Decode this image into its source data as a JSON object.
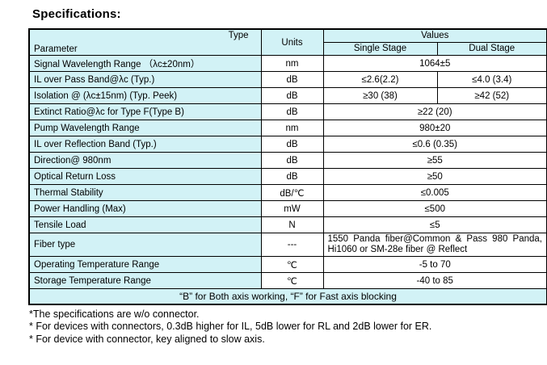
{
  "page": {
    "title": "Specifications:",
    "accent_color": "#d2f2f6",
    "border_color": "#000000"
  },
  "table": {
    "header": {
      "type_label": "Type",
      "param_label": "Parameter",
      "units_label": "Units",
      "values_label": "Values",
      "single_label": "Single Stage",
      "dual_label": "Dual Stage"
    },
    "rows": [
      {
        "param": "Signal Wavelength Range （λc±20nm）",
        "units": "nm",
        "values": [
          "1064±5"
        ]
      },
      {
        "param": "IL over Pass Band@λc (Typ.)",
        "units": "dB",
        "values": [
          "≤2.6(2.2)",
          "≤4.0 (3.4)"
        ]
      },
      {
        "param": "Isolation @ (λc±15nm) (Typ. Peek)",
        "units": "dB",
        "values": [
          "≥30 (38)",
          "≥42 (52)"
        ]
      },
      {
        "param": "Extinct Ratio@λc for Type F(Type B)",
        "units": "dB",
        "values": [
          "≥22 (20)"
        ]
      },
      {
        "param": "Pump Wavelength Range",
        "units": "nm",
        "values": [
          "980±20"
        ]
      },
      {
        "param": "IL over Reflection Band (Typ.)",
        "units": "dB",
        "values": [
          "≤0.6 (0.35)"
        ]
      },
      {
        "param": "Direction@ 980nm",
        "units": "dB",
        "values": [
          "≥55"
        ]
      },
      {
        "param": "Optical Return Loss",
        "units": "dB",
        "values": [
          "≥50"
        ]
      },
      {
        "param": "Thermal Stability",
        "units": "dB/℃",
        "values": [
          "≤0.005"
        ]
      },
      {
        "param": "Power Handling (Max)",
        "units": "mW",
        "values": [
          "≤500"
        ]
      },
      {
        "param": "Tensile Load",
        "units": "N",
        "values": [
          "≤5"
        ]
      },
      {
        "param": "Fiber type",
        "units": "---",
        "values": [
          "1550 Panda fiber@Common & Pass 980 Panda, Hi1060 or SM-28e fiber @ Reflect"
        ]
      },
      {
        "param": "Operating Temperature Range",
        "units": "℃",
        "values": [
          "-5 to 70"
        ]
      },
      {
        "param": "Storage Temperature Range",
        "units": "℃",
        "values": [
          "-40 to 85"
        ]
      }
    ],
    "footer_note": "“B” for Both axis working, “F” for Fast axis blocking"
  },
  "footnotes": [
    "*The specifications are w/o connector.",
    "* For devices with connectors, 0.3dB higher for IL, 5dB lower for RL and 2dB lower for ER.",
    "* For device with connector, key aligned to slow axis."
  ]
}
